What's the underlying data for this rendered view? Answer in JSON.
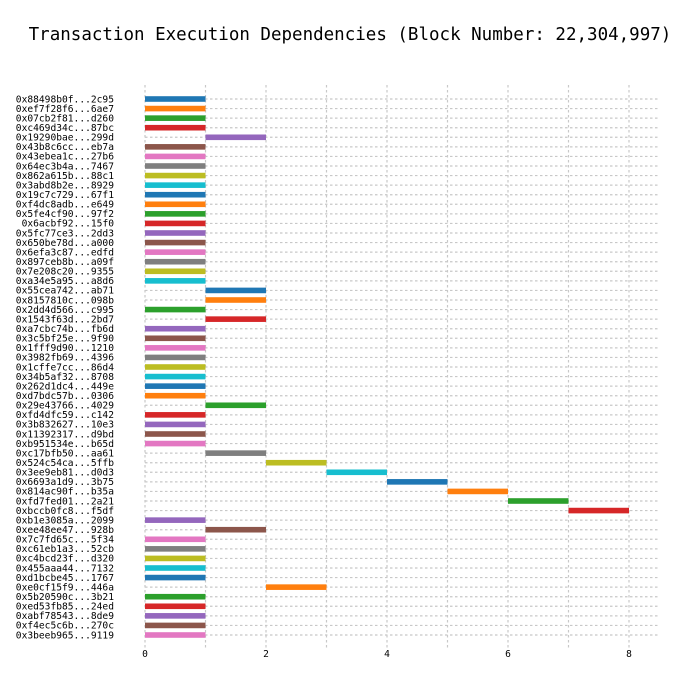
{
  "chart_data": {
    "type": "bar",
    "orientation": "horizontal-gantt",
    "title": "Transaction Execution Dependencies (Block Number: 22,304,997)",
    "xlabel": "",
    "ylabel": "",
    "xlim": [
      0,
      8
    ],
    "xticks": [
      0,
      2,
      4,
      6,
      8
    ],
    "grid": true,
    "palette": [
      "#1f77b4",
      "#ff7f0e",
      "#2ca02c",
      "#d62728",
      "#9467bd",
      "#8c564b",
      "#e377c2",
      "#7f7f7f",
      "#bcbd22",
      "#17becf"
    ],
    "tasks": [
      {
        "label": "0x88498b0f...2c95",
        "start": 0,
        "end": 1
      },
      {
        "label": "0xef7f28f6...6ae7",
        "start": 0,
        "end": 1
      },
      {
        "label": "0x07cb2f81...d260",
        "start": 0,
        "end": 1
      },
      {
        "label": "0xc469d34c...87bc",
        "start": 0,
        "end": 1
      },
      {
        "label": "0x19290bae...299d",
        "start": 1,
        "end": 2
      },
      {
        "label": "0x43b8c6cc...eb7a",
        "start": 0,
        "end": 1
      },
      {
        "label": "0x43ebea1c...27b6",
        "start": 0,
        "end": 1
      },
      {
        "label": "0x64ec3b4a...7467",
        "start": 0,
        "end": 1
      },
      {
        "label": "0x862a615b...88c1",
        "start": 0,
        "end": 1
      },
      {
        "label": "0x3abd8b2e...8929",
        "start": 0,
        "end": 1
      },
      {
        "label": "0x19c7c729...67f1",
        "start": 0,
        "end": 1
      },
      {
        "label": "0xf4dc8adb...e649",
        "start": 0,
        "end": 1
      },
      {
        "label": "0x5fe4cf90...97f2",
        "start": 0,
        "end": 1
      },
      {
        "label": "0x6acbf92...15f0",
        "start": 0,
        "end": 1
      },
      {
        "label": "0x5fc77ce3...2dd3",
        "start": 0,
        "end": 1
      },
      {
        "label": "0x650be78d...a000",
        "start": 0,
        "end": 1
      },
      {
        "label": "0x6efa3c87...edfd",
        "start": 0,
        "end": 1
      },
      {
        "label": "0x897ceb8b...a09f",
        "start": 0,
        "end": 1
      },
      {
        "label": "0x7e208c20...9355",
        "start": 0,
        "end": 1
      },
      {
        "label": "0xa34e5a95...a8d6",
        "start": 0,
        "end": 1
      },
      {
        "label": "0x55cea742...ab71",
        "start": 1,
        "end": 2
      },
      {
        "label": "0x8157810c...098b",
        "start": 1,
        "end": 2
      },
      {
        "label": "0x2dd4d566...c995",
        "start": 0,
        "end": 1
      },
      {
        "label": "0x1543f63d...2bd7",
        "start": 1,
        "end": 2
      },
      {
        "label": "0xa7cbc74b...fb6d",
        "start": 0,
        "end": 1
      },
      {
        "label": "0x3c5bf25e...9f90",
        "start": 0,
        "end": 1
      },
      {
        "label": "0x1fff9d90...1210",
        "start": 0,
        "end": 1
      },
      {
        "label": "0x3982fb69...4396",
        "start": 0,
        "end": 1
      },
      {
        "label": "0x1cffe7cc...86d4",
        "start": 0,
        "end": 1
      },
      {
        "label": "0x34b5af32...8708",
        "start": 0,
        "end": 1
      },
      {
        "label": "0x262d1dc4...449e",
        "start": 0,
        "end": 1
      },
      {
        "label": "0xd7bdc57b...0306",
        "start": 0,
        "end": 1
      },
      {
        "label": "0x29e43766...4029",
        "start": 1,
        "end": 2
      },
      {
        "label": "0xfd4dfc59...c142",
        "start": 0,
        "end": 1
      },
      {
        "label": "0x3b832627...10e3",
        "start": 0,
        "end": 1
      },
      {
        "label": "0x11392317...d9bd",
        "start": 0,
        "end": 1
      },
      {
        "label": "0xb951534e...b65d",
        "start": 0,
        "end": 1
      },
      {
        "label": "0xc17bfb50...aa61",
        "start": 1,
        "end": 2
      },
      {
        "label": "0x524c54ca...5ffb",
        "start": 2,
        "end": 3
      },
      {
        "label": "0x3ee9eb81...d0d3",
        "start": 3,
        "end": 4
      },
      {
        "label": "0x6693a1d9...3b75",
        "start": 4,
        "end": 5
      },
      {
        "label": "0x814ac90f...b35a",
        "start": 5,
        "end": 6
      },
      {
        "label": "0xfd7fed01...2a21",
        "start": 6,
        "end": 7
      },
      {
        "label": "0xbccb0fc8...f5df",
        "start": 7,
        "end": 8
      },
      {
        "label": "0xb1e3085a...2099",
        "start": 0,
        "end": 1
      },
      {
        "label": "0xee48ee47...928b",
        "start": 1,
        "end": 2
      },
      {
        "label": "0x7c7fd65c...5f34",
        "start": 0,
        "end": 1
      },
      {
        "label": "0xc61eb1a3...52cb",
        "start": 0,
        "end": 1
      },
      {
        "label": "0xc4bcd23f...d320",
        "start": 0,
        "end": 1
      },
      {
        "label": "0x455aaa44...7132",
        "start": 0,
        "end": 1
      },
      {
        "label": "0xd1bcbe45...1767",
        "start": 0,
        "end": 1
      },
      {
        "label": "0xe0cf15f9...446a",
        "start": 2,
        "end": 3
      },
      {
        "label": "0x5b20590c...3b21",
        "start": 0,
        "end": 1
      },
      {
        "label": "0xed53fb85...24ed",
        "start": 0,
        "end": 1
      },
      {
        "label": "0xabf78543...8de9",
        "start": 0,
        "end": 1
      },
      {
        "label": "0xf4ec5c6b...270c",
        "start": 0,
        "end": 1
      },
      {
        "label": "0x3beeb965...9119",
        "start": 0,
        "end": 1
      }
    ]
  }
}
